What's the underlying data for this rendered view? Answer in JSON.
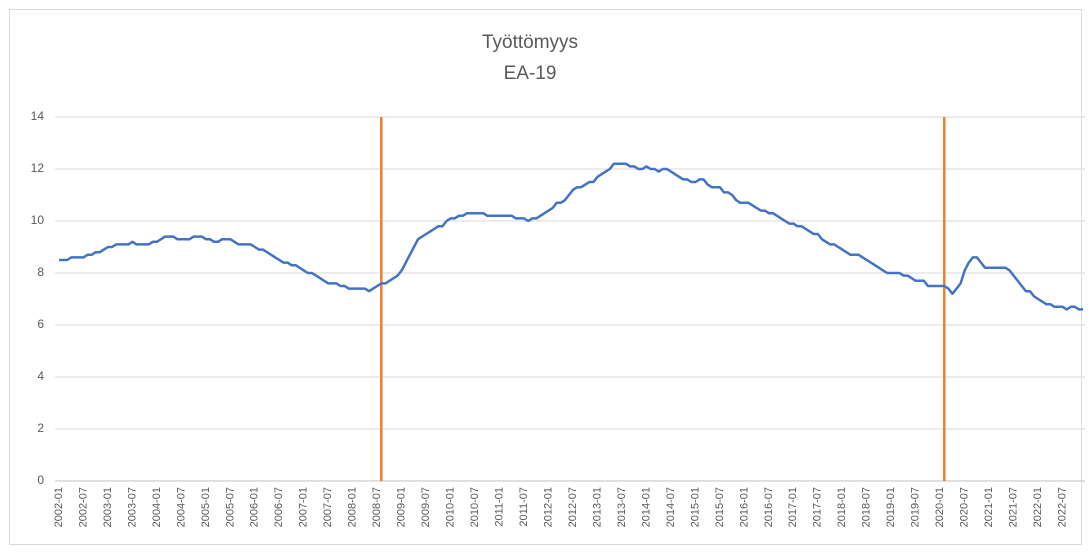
{
  "chart_data": {
    "type": "line",
    "title": "Työttömyys",
    "subtitle": "EA-19",
    "categories": [
      "2002-01",
      null,
      null,
      null,
      null,
      null,
      "2002-07",
      null,
      null,
      null,
      null,
      null,
      "2003-01",
      null,
      null,
      null,
      null,
      null,
      "2003-07",
      null,
      null,
      null,
      null,
      null,
      "2004-01",
      null,
      null,
      null,
      null,
      null,
      "2004-07",
      null,
      null,
      null,
      null,
      null,
      "2005-01",
      null,
      null,
      null,
      null,
      null,
      "2005-07",
      null,
      null,
      null,
      null,
      null,
      "2006-01",
      null,
      null,
      null,
      null,
      null,
      "2006-07",
      null,
      null,
      null,
      null,
      null,
      "2007-01",
      null,
      null,
      null,
      null,
      null,
      "2007-07",
      null,
      null,
      null,
      null,
      null,
      "2008-01",
      null,
      null,
      null,
      null,
      null,
      "2008-07",
      null,
      null,
      null,
      null,
      null,
      "2009-01",
      null,
      null,
      null,
      null,
      null,
      "2009-07",
      null,
      null,
      null,
      null,
      null,
      "2010-01",
      null,
      null,
      null,
      null,
      null,
      "2010-07",
      null,
      null,
      null,
      null,
      null,
      "2011-01",
      null,
      null,
      null,
      null,
      null,
      "2011-07",
      null,
      null,
      null,
      null,
      null,
      "2012-01",
      null,
      null,
      null,
      null,
      null,
      "2012-07",
      null,
      null,
      null,
      null,
      null,
      "2013-01",
      null,
      null,
      null,
      null,
      null,
      "2013-07",
      null,
      null,
      null,
      null,
      null,
      "2014-01",
      null,
      null,
      null,
      null,
      null,
      "2014-07",
      null,
      null,
      null,
      null,
      null,
      "2015-01",
      null,
      null,
      null,
      null,
      null,
      "2015-07",
      null,
      null,
      null,
      null,
      null,
      "2016-01",
      null,
      null,
      null,
      null,
      null,
      "2016-07",
      null,
      null,
      null,
      null,
      null,
      "2017-01",
      null,
      null,
      null,
      null,
      null,
      "2017-07",
      null,
      null,
      null,
      null,
      null,
      "2018-01",
      null,
      null,
      null,
      null,
      null,
      "2018-07",
      null,
      null,
      null,
      null,
      null,
      "2019-01",
      null,
      null,
      null,
      null,
      null,
      "2019-07",
      null,
      null,
      null,
      null,
      null,
      "2020-01",
      null,
      null,
      null,
      null,
      null,
      "2020-07",
      null,
      null,
      null,
      null,
      null,
      "2021-01",
      null,
      null,
      null,
      null,
      null,
      "2021-07",
      null,
      null,
      null,
      null,
      null,
      "2022-01",
      null,
      null,
      null,
      null,
      null,
      "2022-07",
      null,
      null,
      null,
      null,
      null
    ],
    "series": [
      {
        "color": "#4472c4",
        "values": [
          8.5,
          8.5,
          8.5,
          8.6,
          8.6,
          8.6,
          8.6,
          8.7,
          8.7,
          8.8,
          8.8,
          8.9,
          9.0,
          9.0,
          9.1,
          9.1,
          9.1,
          9.1,
          9.2,
          9.1,
          9.1,
          9.1,
          9.1,
          9.2,
          9.2,
          9.3,
          9.4,
          9.4,
          9.4,
          9.3,
          9.3,
          9.3,
          9.3,
          9.4,
          9.4,
          9.4,
          9.3,
          9.3,
          9.2,
          9.2,
          9.3,
          9.3,
          9.3,
          9.2,
          9.1,
          9.1,
          9.1,
          9.1,
          9.0,
          8.9,
          8.9,
          8.8,
          8.7,
          8.6,
          8.5,
          8.4,
          8.4,
          8.3,
          8.3,
          8.2,
          8.1,
          8.0,
          8.0,
          7.9,
          7.8,
          7.7,
          7.6,
          7.6,
          7.6,
          7.5,
          7.5,
          7.4,
          7.4,
          7.4,
          7.4,
          7.4,
          7.3,
          7.4,
          7.5,
          7.6,
          7.6,
          7.7,
          7.8,
          7.9,
          8.1,
          8.4,
          8.7,
          9.0,
          9.3,
          9.4,
          9.5,
          9.6,
          9.7,
          9.8,
          9.8,
          10.0,
          10.1,
          10.1,
          10.2,
          10.2,
          10.3,
          10.3,
          10.3,
          10.3,
          10.3,
          10.2,
          10.2,
          10.2,
          10.2,
          10.2,
          10.2,
          10.2,
          10.1,
          10.1,
          10.1,
          10.0,
          10.1,
          10.1,
          10.2,
          10.3,
          10.4,
          10.5,
          10.7,
          10.7,
          10.8,
          11.0,
          11.2,
          11.3,
          11.3,
          11.4,
          11.5,
          11.5,
          11.7,
          11.8,
          11.9,
          12.0,
          12.2,
          12.2,
          12.2,
          12.2,
          12.1,
          12.1,
          12.0,
          12.0,
          12.1,
          12.0,
          12.0,
          11.9,
          12.0,
          12.0,
          11.9,
          11.8,
          11.7,
          11.6,
          11.6,
          11.5,
          11.5,
          11.6,
          11.6,
          11.4,
          11.3,
          11.3,
          11.3,
          11.1,
          11.1,
          11.0,
          10.8,
          10.7,
          10.7,
          10.7,
          10.6,
          10.5,
          10.4,
          10.4,
          10.3,
          10.3,
          10.2,
          10.1,
          10.0,
          9.9,
          9.9,
          9.8,
          9.8,
          9.7,
          9.6,
          9.5,
          9.5,
          9.3,
          9.2,
          9.1,
          9.1,
          9.0,
          8.9,
          8.8,
          8.7,
          8.7,
          8.7,
          8.6,
          8.5,
          8.4,
          8.3,
          8.2,
          8.1,
          8.0,
          8.0,
          8.0,
          8.0,
          7.9,
          7.9,
          7.8,
          7.7,
          7.7,
          7.7,
          7.5,
          7.5,
          7.5,
          7.5,
          7.5,
          7.4,
          7.2,
          7.4,
          7.6,
          8.1,
          8.4,
          8.6,
          8.6,
          8.4,
          8.2,
          8.2,
          8.2,
          8.2,
          8.2,
          8.2,
          8.1,
          7.9,
          7.7,
          7.5,
          7.3,
          7.3,
          7.1,
          7.0,
          6.9,
          6.8,
          6.8,
          6.7,
          6.7,
          6.7,
          6.6,
          6.7,
          6.7,
          6.6,
          6.6
        ]
      }
    ],
    "vlines": {
      "at": [
        79,
        217
      ],
      "color": "#ed7d31"
    },
    "ylim": [
      0,
      14
    ],
    "yticks": [
      0,
      2,
      4,
      6,
      8,
      10,
      12,
      14
    ],
    "grid": true
  }
}
